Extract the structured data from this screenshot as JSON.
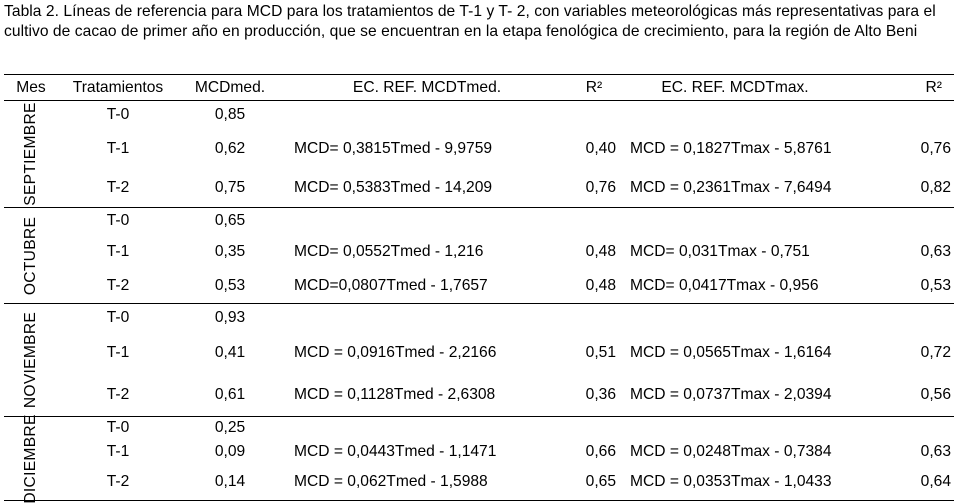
{
  "caption": "Tabla 2. Líneas de referencia para MCD para los tratamientos de T-1 y T- 2, con variables meteorológicas más representativas para el cultivo de cacao de primer año en producción, que se encuentran en la etapa fenológica de crecimiento, para la región de Alto Beni",
  "headers": {
    "mes": "Mes",
    "tratamientos": "Tratamientos",
    "mcdmed": "MCDmed.",
    "ec_med": "EC. REF. MCDTmed.",
    "r2_med": "R²",
    "ec_max": "EC. REF. MCDTmax.",
    "r2_max": "R²"
  },
  "months": [
    {
      "name": "SEPTIEMBRE",
      "rows": [
        {
          "trat": "T-0",
          "mcd": "0,85",
          "ec_med": "",
          "r2_med": "",
          "ec_max": "",
          "r2_max": ""
        },
        {
          "trat": "T-1",
          "mcd": "0,62",
          "ec_med": "MCD= 0,3815Tmed - 9,9759",
          "r2_med": "0,40",
          "ec_max": "MCD = 0,1827Tmax - 5,8761",
          "r2_max": "0,76"
        },
        {
          "trat": "T-2",
          "mcd": "0,75",
          "ec_med": "MCD= 0,5383Tmed - 14,209",
          "r2_med": "0,76",
          "ec_max": "MCD = 0,2361Tmax - 7,6494",
          "r2_max": "0,82"
        }
      ]
    },
    {
      "name": "OCTUBRE",
      "rows": [
        {
          "trat": "T-0",
          "mcd": "0,65",
          "ec_med": "",
          "r2_med": "",
          "ec_max": "",
          "r2_max": ""
        },
        {
          "trat": "T-1",
          "mcd": "0,35",
          "ec_med": "MCD= 0,0552Tmed - 1,216",
          "r2_med": "0,48",
          "ec_max": "MCD= 0,031Tmax - 0,751",
          "r2_max": "0,63"
        },
        {
          "trat": "T-2",
          "mcd": "0,53",
          "ec_med": "MCD=0,0807Tmed - 1,7657",
          "r2_med": "0,48",
          "ec_max": "MCD= 0,0417Tmax - 0,956",
          "r2_max": "0,53"
        }
      ]
    },
    {
      "name": "NOVIEMBRE",
      "rows": [
        {
          "trat": "T-0",
          "mcd": "0,93",
          "ec_med": "",
          "r2_med": "",
          "ec_max": "",
          "r2_max": ""
        },
        {
          "trat": "T-1",
          "mcd": "0,41",
          "ec_med": "MCD = 0,0916Tmed - 2,2166",
          "r2_med": "0,51",
          "ec_max": "MCD = 0,0565Tmax - 1,6164",
          "r2_max": "0,72"
        },
        {
          "trat": "T-2",
          "mcd": "0,61",
          "ec_med": "MCD = 0,1128Tmed - 2,6308",
          "r2_med": "0,36",
          "ec_max": "MCD = 0,0737Tmax - 2,0394",
          "r2_max": "0,56"
        }
      ]
    },
    {
      "name": "DICIEMBRE",
      "rows": [
        {
          "trat": "T-0",
          "mcd": "0,25",
          "ec_med": "",
          "r2_med": "",
          "ec_max": "",
          "r2_max": ""
        },
        {
          "trat": "T-1",
          "mcd": "0,09",
          "ec_med": "MCD = 0,0443Tmed - 1,1471",
          "r2_med": "0,66",
          "ec_max": "MCD = 0,0248Tmax - 0,7384",
          "r2_max": "0,63"
        },
        {
          "trat": "T-2",
          "mcd": "0,14",
          "ec_med": "MCD = 0,062Tmed - 1,5988",
          "r2_med": "0,65",
          "ec_max": "MCD = 0,0353Tmax - 1,0433",
          "r2_max": "0,64"
        }
      ]
    }
  ]
}
